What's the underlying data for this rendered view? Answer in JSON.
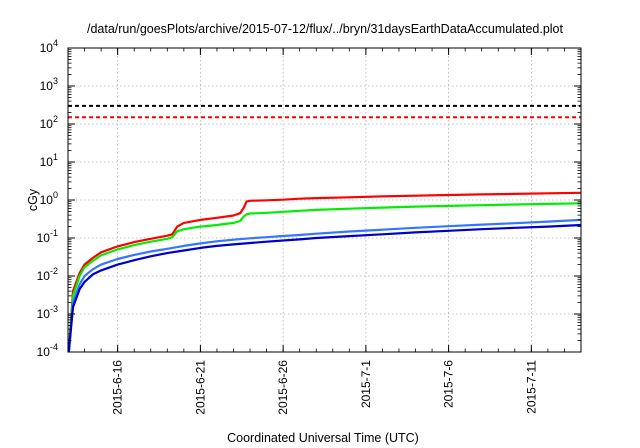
{
  "chart_data": {
    "type": "line",
    "title": "/data/run/goesPlots/archive/2015-07-12/flux/../bryn/31daysEarthDataAccumulated.plot",
    "xlabel": "Coordinated Universal Time (UTC)",
    "ylabel": "cGy",
    "yscale": "log",
    "ylim": [
      0.0001,
      10000
    ],
    "xlim": [
      0,
      31
    ],
    "y_tick_exponents": [
      -4,
      -3,
      -2,
      -1,
      0,
      1,
      2,
      3,
      4
    ],
    "x_ticks": [
      {
        "x": 3,
        "label": "2015-6-16"
      },
      {
        "x": 8,
        "label": "2015-6-21"
      },
      {
        "x": 13,
        "label": "2015-6-26"
      },
      {
        "x": 18,
        "label": "2015-7-1"
      },
      {
        "x": 23,
        "label": "2015-7-6"
      },
      {
        "x": 28,
        "label": "2015-7-11"
      }
    ],
    "grid": true,
    "series": [
      {
        "color": "#000000",
        "style": "dashed",
        "x": [
          0,
          31
        ],
        "y": [
          300,
          300
        ]
      },
      {
        "color": "#ff0000",
        "style": "dashed",
        "x": [
          0,
          31
        ],
        "y": [
          150,
          150
        ]
      },
      {
        "color": "#ff0000",
        "style": "solid",
        "x": [
          0.05,
          0.3,
          0.7,
          1,
          1.5,
          2,
          3,
          4,
          5,
          6,
          6.3,
          6.6,
          7,
          8,
          9,
          10,
          10.4,
          10.6,
          10.8,
          11,
          12,
          13,
          14,
          15,
          17,
          19,
          21,
          23,
          25,
          27,
          29,
          31
        ],
        "y": [
          0.0001,
          0.004,
          0.012,
          0.02,
          0.03,
          0.042,
          0.06,
          0.078,
          0.095,
          0.115,
          0.125,
          0.2,
          0.25,
          0.3,
          0.34,
          0.39,
          0.45,
          0.6,
          0.92,
          0.95,
          0.98,
          1.02,
          1.08,
          1.12,
          1.18,
          1.24,
          1.3,
          1.35,
          1.4,
          1.45,
          1.5,
          1.55
        ]
      },
      {
        "color": "#00ee00",
        "style": "solid",
        "x": [
          0.05,
          0.3,
          0.7,
          1,
          1.5,
          2,
          3,
          4,
          5,
          6,
          6.3,
          6.6,
          7,
          8,
          9,
          10,
          10.4,
          10.6,
          10.8,
          11,
          12,
          13,
          14,
          15,
          17,
          19,
          21,
          23,
          25,
          27,
          29,
          31
        ],
        "y": [
          0.0001,
          0.003,
          0.01,
          0.017,
          0.025,
          0.035,
          0.05,
          0.065,
          0.08,
          0.095,
          0.105,
          0.15,
          0.17,
          0.2,
          0.22,
          0.25,
          0.28,
          0.36,
          0.42,
          0.44,
          0.46,
          0.49,
          0.52,
          0.55,
          0.59,
          0.63,
          0.67,
          0.7,
          0.73,
          0.76,
          0.79,
          0.82
        ]
      },
      {
        "color": "#3377ff",
        "style": "solid",
        "x": [
          0.05,
          0.3,
          0.7,
          1,
          1.5,
          2,
          3,
          4,
          5,
          6,
          7,
          8,
          9,
          10,
          11,
          12,
          13,
          14,
          15,
          17,
          19,
          21,
          23,
          25,
          27,
          29,
          31
        ],
        "y": [
          0.0001,
          0.002,
          0.006,
          0.01,
          0.015,
          0.02,
          0.028,
          0.036,
          0.044,
          0.052,
          0.062,
          0.072,
          0.082,
          0.09,
          0.098,
          0.105,
          0.113,
          0.12,
          0.13,
          0.148,
          0.165,
          0.185,
          0.205,
          0.225,
          0.245,
          0.27,
          0.3
        ]
      },
      {
        "color": "#0000cc",
        "style": "solid",
        "x": [
          0.05,
          0.3,
          0.7,
          1,
          1.5,
          2,
          3,
          4,
          5,
          6,
          7,
          8,
          9,
          10,
          11,
          12,
          13,
          14,
          15,
          17,
          19,
          21,
          23,
          25,
          27,
          29,
          31
        ],
        "y": [
          0.0001,
          0.0015,
          0.0045,
          0.007,
          0.011,
          0.014,
          0.02,
          0.026,
          0.033,
          0.04,
          0.047,
          0.055,
          0.062,
          0.068,
          0.074,
          0.08,
          0.086,
          0.092,
          0.1,
          0.112,
          0.125,
          0.14,
          0.155,
          0.17,
          0.185,
          0.2,
          0.22
        ]
      }
    ]
  }
}
